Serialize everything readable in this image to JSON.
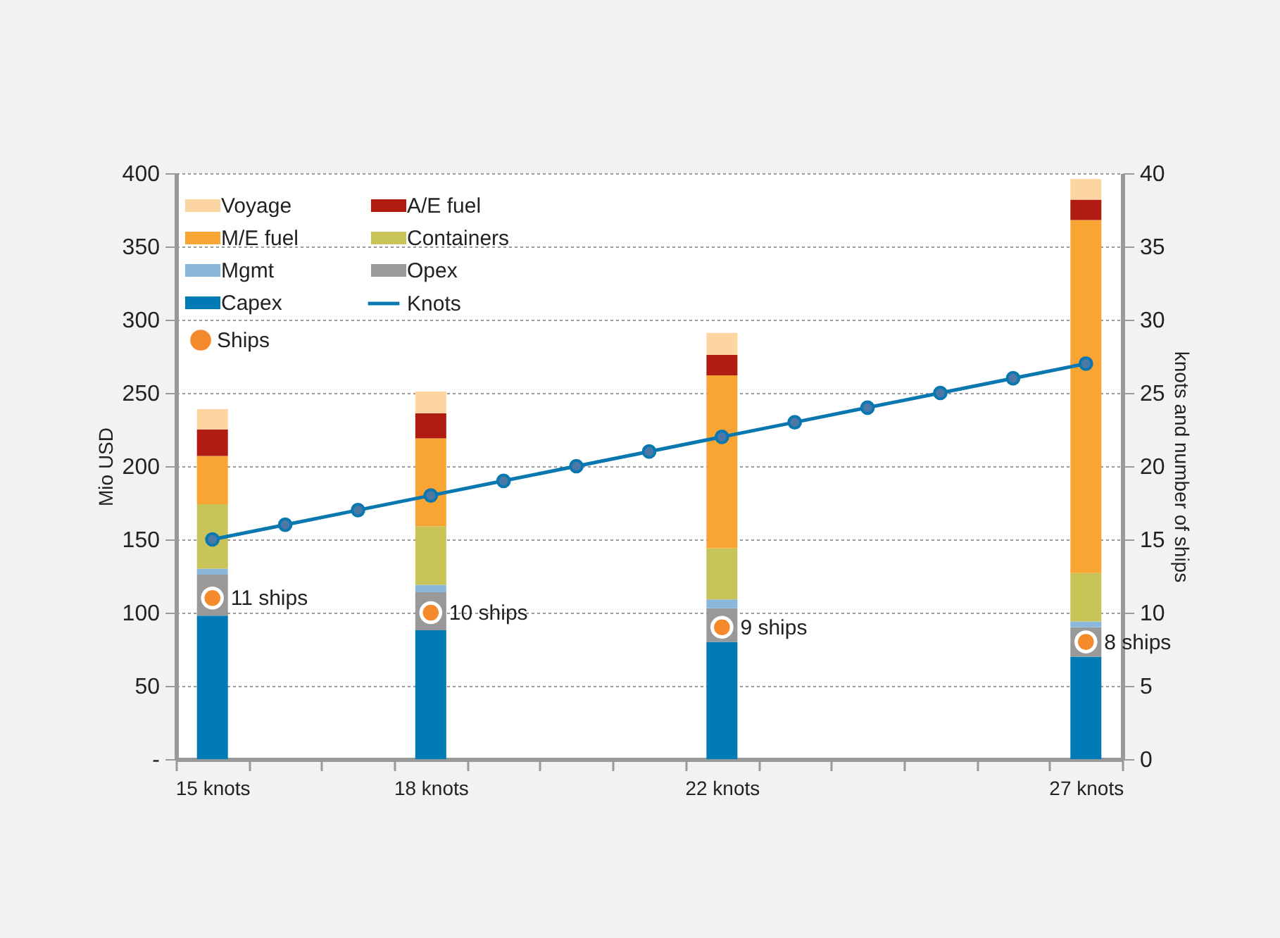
{
  "chart_data": {
    "type": "bar",
    "stacked": true,
    "ylabel": "Mio USD",
    "y2label": "knots and number of ships",
    "categories": [
      "15 knots",
      null,
      null,
      "18 knots",
      null,
      null,
      null,
      "22 knots",
      null,
      null,
      null,
      null,
      "27 knots"
    ],
    "ylim": [
      0,
      400
    ],
    "yticks": [
      {
        "value": 0,
        "label": "-"
      },
      50,
      100,
      150,
      200,
      250,
      300,
      350,
      400
    ],
    "y2lim": [
      0,
      40
    ],
    "y2ticks": [
      0,
      5,
      10,
      15,
      20,
      25,
      30,
      35,
      40
    ],
    "grid": "y",
    "legend": "top left",
    "series": [
      {
        "name": "Capex",
        "color": "#007bb5",
        "values": [
          98,
          null,
          null,
          88,
          null,
          null,
          null,
          80,
          null,
          null,
          null,
          null,
          70
        ]
      },
      {
        "name": "Opex",
        "color": "#999999",
        "values": [
          28,
          null,
          null,
          26,
          null,
          null,
          null,
          23,
          null,
          null,
          null,
          null,
          20
        ]
      },
      {
        "name": "Mgmt",
        "color": "#8ab8dc",
        "values": [
          4,
          null,
          null,
          5,
          null,
          null,
          null,
          6,
          null,
          null,
          null,
          null,
          4
        ]
      },
      {
        "name": "Containers",
        "color": "#c8c458",
        "values": [
          44,
          null,
          null,
          40,
          null,
          null,
          null,
          35,
          null,
          null,
          null,
          null,
          33
        ]
      },
      {
        "name": "M/E fuel",
        "color": "#f9a533",
        "values": [
          33,
          null,
          null,
          60,
          null,
          null,
          null,
          118,
          null,
          null,
          null,
          null,
          241
        ]
      },
      {
        "name": "A/E fuel",
        "color": "#b01c12",
        "values": [
          18,
          null,
          null,
          17,
          null,
          null,
          null,
          14,
          null,
          null,
          null,
          null,
          14
        ]
      },
      {
        "name": "Voyage",
        "color": "#fdd5a0",
        "values": [
          14,
          null,
          null,
          15,
          null,
          null,
          null,
          15,
          null,
          null,
          null,
          null,
          14
        ]
      },
      {
        "name": "Knots",
        "type": "line",
        "axis": "y2",
        "marker": "circle",
        "color": "#0a78b0",
        "values": [
          15,
          16,
          17,
          18,
          19,
          20,
          21,
          22,
          23,
          24,
          25,
          26,
          27
        ]
      },
      {
        "name": "Ships",
        "type": "scatter",
        "axis": "y2",
        "marker": "circle",
        "color": "#f58a2c",
        "values": [
          11,
          null,
          null,
          10,
          null,
          null,
          null,
          9,
          null,
          null,
          null,
          null,
          8
        ],
        "value_labels": [
          "11 ships",
          null,
          null,
          "10 ships",
          null,
          null,
          null,
          "9 ships",
          null,
          null,
          null,
          null,
          "8 ships"
        ]
      }
    ]
  }
}
